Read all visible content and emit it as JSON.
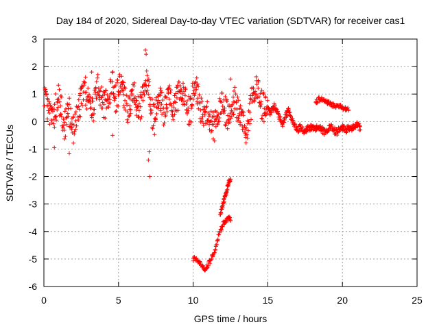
{
  "chart_data": {
    "type": "scatter",
    "title": "Day 184 of 2020, Sidereal Day-to-day VTEC variation (SDTVAR) for receiver cas1",
    "xlabel": "GPS time / hours",
    "ylabel": "SDTVAR / TECUs",
    "xlim": [
      0,
      25
    ],
    "ylim": [
      -6,
      3
    ],
    "grid": true,
    "marker": "+",
    "color": "#ff0000",
    "x_ticks": [
      0,
      5,
      10,
      15,
      20,
      25
    ],
    "y_ticks": [
      -6,
      -5,
      -4,
      -3,
      -2,
      -1,
      0,
      1,
      2,
      3
    ],
    "series": [
      {
        "name": "SDTVAR",
        "segments": [
          {
            "x": [
              0.0,
              0.2,
              0.4,
              0.6,
              0.8,
              1.0,
              1.2,
              1.4,
              1.6,
              1.8,
              2.0,
              2.2,
              2.4,
              2.6,
              2.8,
              3.0,
              3.2,
              3.4,
              3.6,
              3.8,
              4.0,
              4.2,
              4.4,
              4.6,
              4.8,
              5.0,
              5.2,
              5.4,
              5.6,
              5.8,
              6.0,
              6.2,
              6.4,
              6.6,
              6.8,
              7.0,
              7.2,
              7.4,
              7.6,
              7.8,
              8.0,
              8.2,
              8.4,
              8.6,
              8.8,
              9.0,
              9.2,
              9.4,
              9.6,
              9.8,
              10.0,
              10.2,
              10.4,
              10.6,
              10.8,
              11.0,
              11.2,
              11.4,
              11.6,
              11.8,
              12.0,
              12.2,
              12.4,
              12.6,
              12.8,
              13.0,
              13.2,
              13.4,
              13.6,
              13.8,
              14.0,
              14.2,
              14.4,
              14.6,
              14.8,
              15.0,
              15.2,
              15.4,
              15.6,
              15.8,
              16.0,
              16.2,
              16.4,
              16.6,
              16.8,
              17.0,
              17.2,
              17.4,
              17.6,
              17.8,
              18.0,
              18.2,
              18.4,
              18.6,
              18.8,
              19.0,
              19.2,
              19.4,
              19.6,
              19.8,
              20.0,
              20.2,
              20.4,
              20.6,
              20.8,
              21.0,
              21.2
            ],
            "y": [
              1.0,
              0.6,
              0.2,
              -0.1,
              0.5,
              0.8,
              0.3,
              -0.2,
              0.6,
              0.1,
              -0.3,
              0.2,
              0.7,
              0.9,
              1.1,
              0.6,
              0.3,
              0.8,
              1.2,
              0.9,
              0.5,
              0.7,
              1.0,
              1.3,
              0.8,
              1.1,
              1.4,
              0.9,
              0.5,
              0.7,
              1.0,
              0.6,
              0.3,
              0.8,
              1.6,
              1.1,
              0.4,
              0.0,
              0.6,
              0.9,
              0.4,
              0.7,
              1.0,
              0.3,
              0.6,
              0.9,
              1.2,
              0.8,
              0.5,
              0.3,
              1.0,
              1.3,
              0.7,
              0.4,
              0.1,
              0.2,
              -0.1,
              -0.3,
              0.2,
              0.4,
              0.6,
              0.3,
              0.1,
              0.4,
              0.8,
              0.5,
              0.2,
              -0.2,
              -0.5,
              0.3,
              1.0,
              1.2,
              0.9,
              0.6,
              0.4,
              0.5,
              0.3,
              0.6,
              0.4,
              0.1,
              -0.1,
              0.2,
              0.4,
              0.1,
              -0.2,
              -0.3,
              -0.2,
              -0.4,
              -0.3,
              -0.2,
              -0.2,
              -0.3,
              -0.2,
              -0.3,
              -0.4,
              -0.3,
              -0.2,
              -0.3,
              -0.4,
              -0.3,
              -0.2,
              -0.3,
              -0.2,
              -0.3,
              -0.2,
              -0.1,
              -0.3
            ]
          },
          {
            "x": [
              10.0,
              10.2,
              10.4,
              10.6,
              10.8,
              11.0,
              11.2,
              11.4,
              11.6,
              11.8,
              12.0,
              12.2,
              12.4,
              12.5
            ],
            "y": [
              -5.0,
              -5.0,
              -5.1,
              -5.3,
              -5.4,
              -5.2,
              -5.0,
              -4.8,
              -4.4,
              -4.0,
              -3.7,
              -3.6,
              -3.5,
              -3.6
            ]
          },
          {
            "x": [
              11.8,
              11.9,
              12.0,
              12.1,
              12.2,
              12.3,
              12.4,
              12.5
            ],
            "y": [
              -3.4,
              -3.2,
              -3.0,
              -2.8,
              -2.6,
              -2.4,
              -2.2,
              -2.1
            ]
          },
          {
            "x": [
              18.2,
              18.4,
              18.6,
              18.8,
              19.0,
              19.2,
              19.4,
              19.6,
              19.8,
              20.0,
              20.2,
              20.4
            ],
            "y": [
              0.7,
              0.8,
              0.8,
              0.75,
              0.7,
              0.65,
              0.6,
              0.55,
              0.55,
              0.5,
              0.45,
              0.4
            ]
          }
        ],
        "outliers": {
          "x": [
            6.8,
            6.85,
            7.0,
            7.1,
            7.05,
            1.7,
            0.7,
            3.2,
            12.5,
            4.6,
            7.8
          ],
          "y": [
            2.6,
            2.45,
            -1.4,
            -2.0,
            -1.1,
            -1.15,
            -0.95,
            1.8,
            1.55,
            -0.5,
            0.95
          ]
        }
      }
    ]
  }
}
